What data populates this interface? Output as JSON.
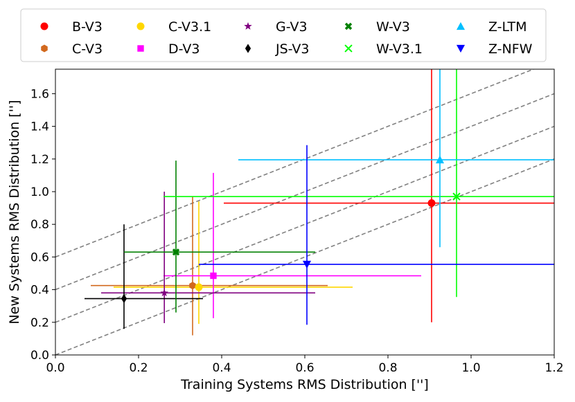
{
  "chart_data": {
    "type": "scatter",
    "xlabel": "Training Systems RMS Distribution ['']",
    "ylabel": "New Systems RMS Distribution ['']",
    "xlim": [
      0.0,
      1.2
    ],
    "ylim": [
      0.0,
      1.75
    ],
    "xticks": [
      "0.0",
      "0.2",
      "0.4",
      "0.6",
      "0.8",
      "1.0",
      "1.2"
    ],
    "yticks": [
      "0.0",
      "0.2",
      "0.4",
      "0.6",
      "0.8",
      "1.0",
      "1.2",
      "1.4",
      "1.6"
    ],
    "xtick_values": [
      0.0,
      0.2,
      0.4,
      0.6,
      0.8,
      1.0,
      1.2
    ],
    "ytick_values": [
      0.0,
      0.2,
      0.4,
      0.6,
      0.8,
      1.0,
      1.2,
      1.4,
      1.6
    ],
    "legend_position": "top",
    "reference_lines": [
      {
        "slope": 1,
        "intercept": 0.0
      },
      {
        "slope": 1,
        "intercept": 0.2
      },
      {
        "slope": 1,
        "intercept": 0.4
      },
      {
        "slope": 1,
        "intercept": 0.6
      }
    ],
    "series": [
      {
        "name": "B-V3",
        "color": "#ff0000",
        "marker": "circle",
        "x": 0.905,
        "y": 0.93,
        "xerr": [
          0.405,
          1.2
        ],
        "yerr": [
          0.2,
          1.75
        ]
      },
      {
        "name": "C-V3",
        "color": "#d2691e",
        "marker": "hexagon",
        "x": 0.33,
        "y": 0.425,
        "xerr": [
          0.085,
          0.655
        ],
        "yerr": [
          0.12,
          0.97
        ]
      },
      {
        "name": "C-V3.1",
        "color": "#ffd700",
        "marker": "circle",
        "x": 0.345,
        "y": 0.415,
        "xerr": [
          0.14,
          0.715
        ],
        "yerr": [
          0.19,
          0.94
        ]
      },
      {
        "name": "D-V3",
        "color": "#ff00ff",
        "marker": "square",
        "x": 0.38,
        "y": 0.485,
        "xerr": [
          0.26,
          0.88
        ],
        "yerr": [
          0.225,
          1.115
        ]
      },
      {
        "name": "G-V3",
        "color": "#800080",
        "marker": "star",
        "x": 0.262,
        "y": 0.38,
        "xerr": [
          0.11,
          0.625
        ],
        "yerr": [
          0.195,
          1.0
        ]
      },
      {
        "name": "JS-V3",
        "color": "#000000",
        "marker": "diamond",
        "x": 0.165,
        "y": 0.345,
        "xerr": [
          0.07,
          0.355
        ],
        "yerr": [
          0.16,
          0.8
        ]
      },
      {
        "name": "W-V3",
        "color": "#008000",
        "marker": "x-thick",
        "x": 0.29,
        "y": 0.63,
        "xerr": [
          0.165,
          0.625
        ],
        "yerr": [
          0.26,
          1.19
        ]
      },
      {
        "name": "W-V3.1",
        "color": "#00ff00",
        "marker": "x",
        "x": 0.965,
        "y": 0.97,
        "xerr": [
          0.26,
          1.2
        ],
        "yerr": [
          0.355,
          1.75
        ]
      },
      {
        "name": "Z-LTM",
        "color": "#00bfff",
        "marker": "triangle-up",
        "x": 0.925,
        "y": 1.195,
        "xerr": [
          0.44,
          1.2
        ],
        "yerr": [
          0.66,
          1.75
        ]
      },
      {
        "name": "Z-NFW",
        "color": "#0000ff",
        "marker": "triangle-down",
        "x": 0.605,
        "y": 0.555,
        "xerr": [
          0.345,
          1.2
        ],
        "yerr": [
          0.185,
          1.285
        ]
      }
    ],
    "legend_rows": [
      [
        "B-V3",
        "C-V3.1",
        "G-V3",
        "W-V3",
        "Z-LTM"
      ],
      [
        "C-V3",
        "D-V3",
        "JS-V3",
        "W-V3.1",
        "Z-NFW"
      ]
    ]
  }
}
